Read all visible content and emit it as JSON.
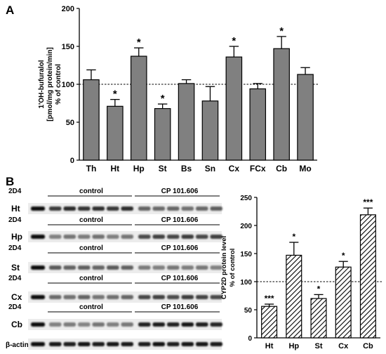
{
  "panel_labels": {
    "a": "A",
    "b": "B"
  },
  "blot": {
    "antibody": "2D4",
    "group_control": "control",
    "group_treated": "CP 101.606",
    "rows": [
      "Ht",
      "Hp",
      "St",
      "Cx",
      "Cb"
    ],
    "loading_label": "β-actin"
  },
  "chart_data": [
    {
      "type": "bar",
      "panel": "A",
      "categories": [
        "Th",
        "Ht",
        "Hp",
        "St",
        "Bs",
        "Sn",
        "Cx",
        "FCx",
        "Cb",
        "Mo"
      ],
      "values": [
        106,
        71,
        137,
        68,
        101,
        78,
        136,
        94,
        147,
        113
      ],
      "errors": [
        13,
        9,
        11,
        6,
        5,
        19,
        14,
        7,
        16,
        9
      ],
      "significance": [
        "",
        "*",
        "*",
        "*",
        "",
        "",
        "*",
        "",
        "*",
        ""
      ],
      "ylabel_lines": [
        "1'OH-bufuralol",
        "[pmol/mg protein/min]",
        "% of control"
      ],
      "ylim": [
        0,
        200
      ],
      "yticks": [
        0,
        50,
        100,
        150,
        200
      ],
      "reference_line": 100,
      "bar_color": "#808080"
    },
    {
      "type": "bar",
      "panel": "B",
      "categories": [
        "Ht",
        "Hp",
        "St",
        "Cx",
        "Cb"
      ],
      "values": [
        56,
        147,
        70,
        126,
        219
      ],
      "errors": [
        4,
        23,
        7,
        10,
        12
      ],
      "significance": [
        "***",
        "*",
        "*",
        "*",
        "***"
      ],
      "ylabel_lines": [
        "CYP2D protein level",
        "% of control"
      ],
      "ylim": [
        0,
        250
      ],
      "yticks": [
        0,
        50,
        100,
        150,
        200,
        250
      ],
      "reference_line": 100,
      "bar_fill": "hatched"
    }
  ]
}
